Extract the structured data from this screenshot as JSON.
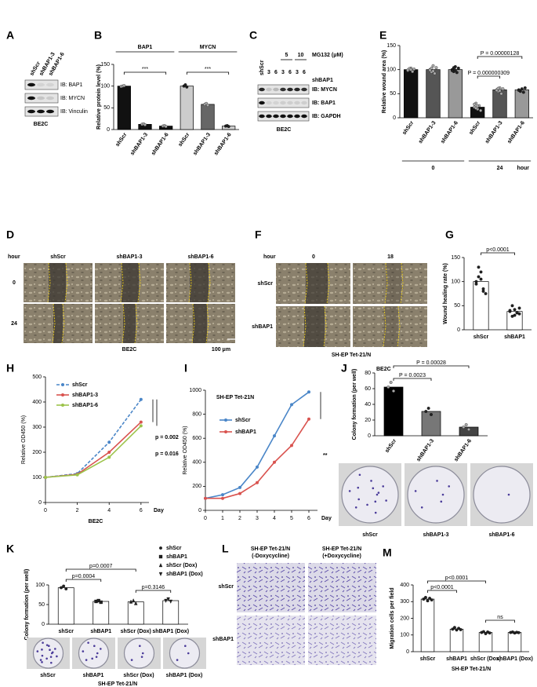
{
  "chart_data": [
    {
      "panel": "B",
      "type": "bar",
      "ylabel": "Relative protein level (%)",
      "groups": [
        "BAP1",
        "MYCN"
      ],
      "categories": [
        "shScr",
        "shBAP1-3",
        "shBAP1-6",
        "shScr",
        "shBAP1-3",
        "shBAP1-6"
      ],
      "values": [
        100,
        12,
        8,
        100,
        58,
        8
      ],
      "points": [
        [
          99,
          100,
          101
        ],
        [
          12,
          13,
          11
        ],
        [
          8,
          9,
          7
        ],
        [
          100,
          103,
          98
        ],
        [
          58,
          60,
          56
        ],
        [
          8,
          9,
          7
        ]
      ],
      "colors": [
        "#111111",
        "#111111",
        "#111111",
        "#cccccc",
        "#666666",
        "#cccccc"
      ],
      "ylim": [
        0,
        150
      ],
      "yticks": [
        0,
        50,
        100,
        150
      ],
      "annotations": [
        "***",
        "***"
      ]
    },
    {
      "panel": "E",
      "type": "bar",
      "ylabel": "Relative wound area (%)",
      "groups": [
        "0",
        "24"
      ],
      "xlabel": "hour",
      "categories": [
        "shScr",
        "shBAP1-3",
        "shBAP1-6",
        "shScr",
        "shBAP1-3",
        "shBAP1-6"
      ],
      "values": [
        100,
        100,
        100,
        22,
        58,
        58
      ],
      "points": [
        [
          98,
          100,
          103,
          96,
          101,
          99,
          102,
          100
        ],
        [
          100,
          95,
          108,
          92,
          104,
          99,
          103,
          97
        ],
        [
          100,
          96,
          106,
          94,
          103,
          98,
          104,
          99
        ],
        [
          22,
          30,
          18,
          25,
          15,
          28,
          20,
          24
        ],
        [
          58,
          55,
          62,
          50,
          60,
          57,
          61,
          56
        ],
        [
          58,
          55,
          60,
          53,
          62,
          57
        ]
      ],
      "colors": [
        "#111111",
        "#555555",
        "#999999",
        "#111111",
        "#555555",
        "#999999"
      ],
      "ylim": [
        0,
        150
      ],
      "yticks": [
        0,
        50,
        100,
        150
      ],
      "annotations": [
        "P = 0.00000128",
        "P = 0.000000309"
      ]
    },
    {
      "panel": "G",
      "type": "bar",
      "ylabel": "Wound healing rate (%)",
      "categories": [
        "shScr",
        "shBAP1"
      ],
      "values": [
        100,
        38
      ],
      "points": [
        [
          100,
          130,
          120,
          80,
          75,
          95,
          110,
          105,
          85
        ],
        [
          38,
          50,
          30,
          35,
          45,
          40,
          28,
          42,
          36,
          33
        ]
      ],
      "colors": [
        "#ffffff",
        "#ffffff"
      ],
      "ylim": [
        0,
        150
      ],
      "yticks": [
        0,
        50,
        100,
        150
      ],
      "annotations": [
        "p<0.0001"
      ]
    },
    {
      "panel": "H",
      "type": "line",
      "ylabel": "Relative OD450 (%)",
      "xlabel": "Day",
      "caption": "BE2C",
      "x": [
        0,
        2,
        4,
        6
      ],
      "series": [
        {
          "name": "shScr",
          "color": "#4a86c8",
          "style": "dashed",
          "values": [
            100,
            115,
            240,
            410
          ]
        },
        {
          "name": "shBAP1-3",
          "color": "#d9534f",
          "style": "solid",
          "values": [
            100,
            112,
            200,
            320
          ]
        },
        {
          "name": "shBAP1-6",
          "color": "#9cc34a",
          "style": "solid",
          "values": [
            100,
            110,
            180,
            305
          ]
        }
      ],
      "xlim": [
        0,
        6.5
      ],
      "xticks": [
        0,
        2,
        4,
        6
      ],
      "ylim": [
        0,
        500
      ],
      "yticks": [
        0,
        100,
        200,
        300,
        400,
        500
      ],
      "annotations": [
        "p = 0.002",
        "p = 0.016"
      ]
    },
    {
      "panel": "I",
      "type": "line",
      "title": "SH-EP Tet-21N",
      "ylabel": "Relative OD450 (%)",
      "xlabel": "Day",
      "x": [
        0,
        1,
        2,
        3,
        4,
        5,
        6
      ],
      "series": [
        {
          "name": "shScr",
          "color": "#4a86c8",
          "style": "solid",
          "values": [
            100,
            130,
            190,
            360,
            620,
            880,
            985
          ]
        },
        {
          "name": "shBAP1",
          "color": "#d9534f",
          "style": "solid",
          "values": [
            100,
            100,
            140,
            230,
            400,
            540,
            760
          ]
        }
      ],
      "xlim": [
        0,
        6.5
      ],
      "xticks": [
        0,
        1,
        2,
        3,
        4,
        5,
        6
      ],
      "ylim": [
        0,
        1000
      ],
      "yticks": [
        0,
        200,
        400,
        600,
        800,
        1000
      ],
      "annotations": [
        "**"
      ]
    },
    {
      "panel": "J",
      "type": "bar",
      "title": "BE2C",
      "ylabel": "Colony formation  (per well)",
      "categories": [
        "shScr",
        "shBAP1-3",
        "shBAP1-6"
      ],
      "values": [
        62,
        31,
        11
      ],
      "points": [
        [
          62,
          68,
          57
        ],
        [
          31,
          35,
          27
        ],
        [
          11,
          14,
          8
        ]
      ],
      "colors": [
        "#000000",
        "#777777",
        "#444444"
      ],
      "ylim": [
        0,
        80
      ],
      "yticks": [
        0,
        20,
        40,
        60,
        80
      ],
      "annotations": [
        "P = 0.0023",
        "P = 0.00028"
      ],
      "dish_labels": [
        "shScr",
        "shBAP1-3",
        "shBAP1-6"
      ]
    },
    {
      "panel": "K",
      "type": "bar",
      "ylabel": "Colony formation (per well)",
      "caption": "SH-EP Tet-21/N",
      "categories": [
        "shScr",
        "shBAP1",
        "shScr (Dox)",
        "shBAP1 (Dox)"
      ],
      "values": [
        93,
        58,
        57,
        60
      ],
      "points": [
        [
          93,
          97,
          90
        ],
        [
          58,
          60,
          56
        ],
        [
          57,
          60,
          53
        ],
        [
          60,
          64,
          58
        ]
      ],
      "markers": [
        "circle",
        "square",
        "triangle",
        "triangle-down"
      ],
      "colors": [
        "#ffffff",
        "#ffffff",
        "#ffffff",
        "#ffffff"
      ],
      "ylim": [
        0,
        100
      ],
      "yticks": [
        0,
        50,
        100
      ],
      "annotations": [
        "p=0.0007",
        "p=0.0004",
        "p=0.3146"
      ],
      "dish_labels": [
        "shScr",
        "shBAP1",
        "shScr (Dox)",
        "shBAP1 (Dox)"
      ]
    },
    {
      "panel": "M",
      "type": "bar",
      "ylabel": "Migration cells per field",
      "caption": "SH-EP Tet-21/N",
      "categories": [
        "shScr",
        "shBAP1",
        "shScr (Dox)",
        "shBAP1 (Dox)"
      ],
      "values": [
        315,
        135,
        115,
        115
      ],
      "points": [
        [
          315,
          325,
          305,
          320,
          310
        ],
        [
          135,
          145,
          130,
          140,
          132
        ],
        [
          115,
          120,
          108,
          118,
          112
        ],
        [
          115,
          118,
          112,
          116,
          114
        ]
      ],
      "colors": [
        "#ffffff",
        "#ffffff",
        "#ffffff",
        "#ffffff"
      ],
      "ylim": [
        0,
        400
      ],
      "yticks": [
        0,
        100,
        200,
        300,
        400
      ],
      "annotations": [
        "p<0.0001",
        "p<0.0001",
        "ns"
      ]
    }
  ],
  "blot_A": {
    "panel": "A",
    "lanes": [
      "shScr",
      "shBAP1-3",
      "shBAP1-6"
    ],
    "rows": [
      "IB: BAP1",
      "IB: MYCN",
      "IB: Vinculin"
    ],
    "cell_line": "BE2C"
  },
  "blot_C": {
    "panel": "C",
    "lanes": [
      "shScr",
      "3",
      "6",
      "3",
      "6",
      "3",
      "6"
    ],
    "doses": [
      "5",
      "10"
    ],
    "treatment": "MG132 (μM)",
    "knockdown": "shBAP1",
    "rows": [
      "IB: MYCN",
      "IB: BAP1",
      "IB: GAPDH"
    ],
    "cell_line": "BE2C"
  },
  "wound_D": {
    "panel": "D",
    "time_header": "hour",
    "columns": [
      "shScr",
      "shBAP1-3",
      "shBAP1-6"
    ],
    "rows": [
      "0",
      "24"
    ],
    "cell_line": "BE2C",
    "scale_bar": "100 μm"
  },
  "wound_F": {
    "panel": "F",
    "time_header": "hour",
    "columns": [
      "0",
      "18"
    ],
    "rows": [
      "shScr",
      "shBAP1"
    ],
    "cell_line": "SH-EP Tet-21/N"
  },
  "transwell_L": {
    "panel": "L",
    "columns": [
      [
        "SH-EP Tet-21/N",
        "(-Doxycycline)"
      ],
      [
        "SH-EP Tet-21/N",
        "(+Doxycycline)"
      ]
    ],
    "rows": [
      "shScr",
      "shBAP1"
    ]
  }
}
